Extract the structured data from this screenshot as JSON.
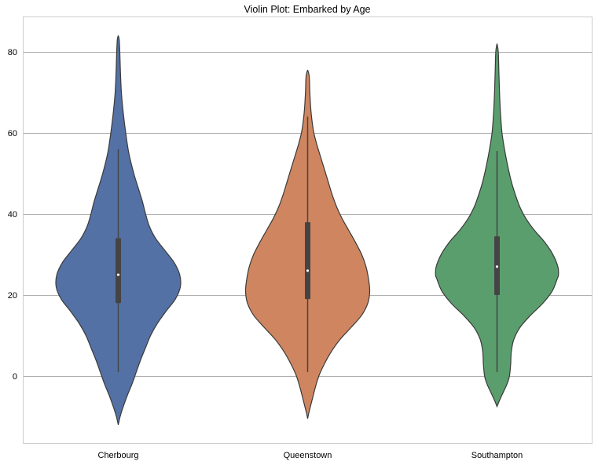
{
  "chart_data": {
    "type": "violin",
    "title": "Violin Plot: Embarked by Age",
    "xlabel": "",
    "ylabel": "",
    "ylim": [
      -16.5,
      88.5
    ],
    "yticks": [
      0,
      20,
      40,
      60,
      80
    ],
    "ytick_labels": [
      "0",
      "20",
      "40",
      "60",
      "80"
    ],
    "grid": "horizontal",
    "categories": [
      "Cherbourg",
      "Queenstown",
      "Southampton"
    ],
    "colors": [
      "#5471a5",
      "#cf8660",
      "#5a9e6e"
    ],
    "series": [
      {
        "box": {
          "whisker_low": 1,
          "q1": 18,
          "median": 25,
          "q3": 34,
          "whisker_high": 56
        },
        "density": [
          [
            -12,
            0
          ],
          [
            -10,
            0.03
          ],
          [
            -8,
            0.07
          ],
          [
            -5,
            0.14
          ],
          [
            -2,
            0.22
          ],
          [
            1,
            0.29
          ],
          [
            4,
            0.36
          ],
          [
            7,
            0.44
          ],
          [
            10,
            0.52
          ],
          [
            13,
            0.63
          ],
          [
            16,
            0.77
          ],
          [
            19,
            0.92
          ],
          [
            22,
            1.0
          ],
          [
            25,
            0.99
          ],
          [
            28,
            0.9
          ],
          [
            31,
            0.75
          ],
          [
            34,
            0.6
          ],
          [
            37,
            0.5
          ],
          [
            40,
            0.44
          ],
          [
            43,
            0.39
          ],
          [
            46,
            0.33
          ],
          [
            50,
            0.25
          ],
          [
            55,
            0.17
          ],
          [
            60,
            0.12
          ],
          [
            65,
            0.08
          ],
          [
            70,
            0.05
          ],
          [
            75,
            0.035
          ],
          [
            80,
            0.025
          ],
          [
            83,
            0.015
          ],
          [
            84,
            0
          ]
        ]
      },
      {
        "box": {
          "whisker_low": 1,
          "q1": 19,
          "median": 26,
          "q3": 38,
          "whisker_high": 64
        },
        "density": [
          [
            -10.5,
            0
          ],
          [
            -9,
            0.02
          ],
          [
            -6,
            0.07
          ],
          [
            -3,
            0.12
          ],
          [
            0,
            0.18
          ],
          [
            3,
            0.27
          ],
          [
            6,
            0.38
          ],
          [
            9,
            0.52
          ],
          [
            12,
            0.7
          ],
          [
            15,
            0.87
          ],
          [
            18,
            0.97
          ],
          [
            21,
            1.0
          ],
          [
            24,
            0.98
          ],
          [
            27,
            0.94
          ],
          [
            30,
            0.87
          ],
          [
            33,
            0.77
          ],
          [
            36,
            0.66
          ],
          [
            39,
            0.55
          ],
          [
            42,
            0.46
          ],
          [
            45,
            0.39
          ],
          [
            48,
            0.33
          ],
          [
            51,
            0.27
          ],
          [
            54,
            0.21
          ],
          [
            57,
            0.15
          ],
          [
            60,
            0.1
          ],
          [
            63,
            0.07
          ],
          [
            66,
            0.05
          ],
          [
            70,
            0.035
          ],
          [
            74,
            0.025
          ],
          [
            75.5,
            0
          ]
        ]
      },
      {
        "box": {
          "whisker_low": 1,
          "q1": 20,
          "median": 27,
          "q3": 34.5,
          "whisker_high": 55.5
        },
        "density": [
          [
            -7.5,
            0
          ],
          [
            -6,
            0.04
          ],
          [
            -4,
            0.1
          ],
          [
            -2,
            0.16
          ],
          [
            0,
            0.2
          ],
          [
            3,
            0.22
          ],
          [
            6,
            0.23
          ],
          [
            9,
            0.27
          ],
          [
            12,
            0.37
          ],
          [
            15,
            0.54
          ],
          [
            18,
            0.74
          ],
          [
            21,
            0.89
          ],
          [
            24,
            0.97
          ],
          [
            25,
            0.99
          ],
          [
            27,
            0.98
          ],
          [
            30,
            0.9
          ],
          [
            33,
            0.77
          ],
          [
            36,
            0.6
          ],
          [
            39,
            0.46
          ],
          [
            42,
            0.36
          ],
          [
            45,
            0.29
          ],
          [
            48,
            0.23
          ],
          [
            52,
            0.17
          ],
          [
            56,
            0.12
          ],
          [
            60,
            0.08
          ],
          [
            65,
            0.055
          ],
          [
            70,
            0.04
          ],
          [
            75,
            0.03
          ],
          [
            80,
            0.02
          ],
          [
            82,
            0
          ]
        ]
      }
    ]
  }
}
